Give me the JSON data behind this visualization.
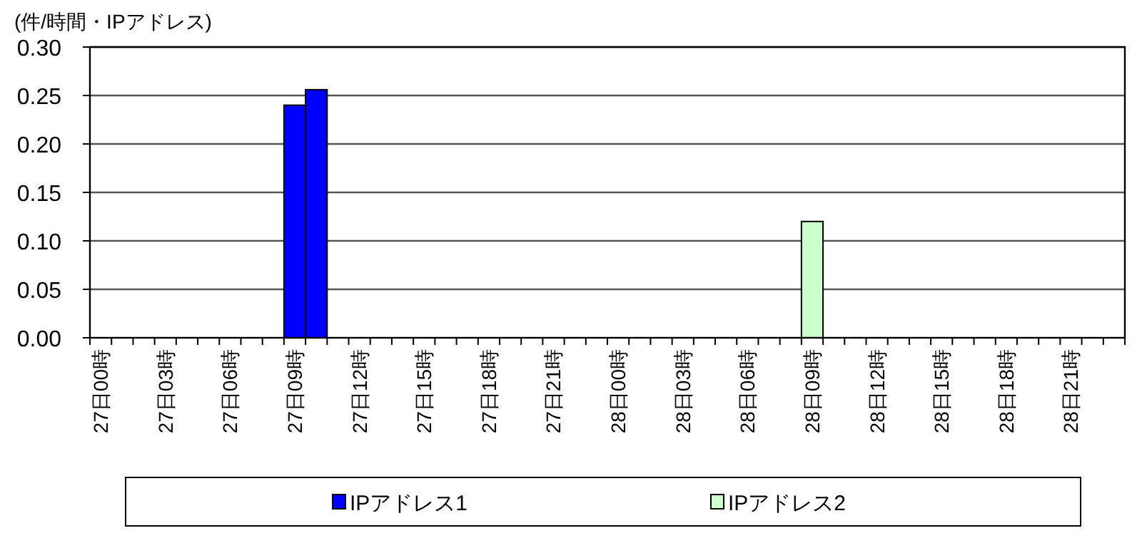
{
  "chart_data": {
    "type": "bar",
    "ylabel": "(件/時間・IPアドレス)",
    "categories": [
      "27日00時",
      null,
      null,
      "27日03時",
      null,
      null,
      "27日06時",
      null,
      null,
      "27日09時",
      null,
      null,
      "27日12時",
      null,
      null,
      "27日15時",
      null,
      null,
      "27日18時",
      null,
      null,
      "27日21時",
      null,
      null,
      "28日00時",
      null,
      null,
      "28日03時",
      null,
      null,
      "28日06時",
      null,
      null,
      "28日09時",
      null,
      null,
      "28日12時",
      null,
      null,
      "28日15時",
      null,
      null,
      "28日18時",
      null,
      null,
      "28日21時",
      null,
      null
    ],
    "series": [
      {
        "name": "IPアドレス1",
        "color": "#0000ff",
        "values": [
          0,
          0,
          0,
          0,
          0,
          0,
          0,
          0,
          0,
          0.24,
          0.256,
          0,
          0,
          0,
          0,
          0,
          0,
          0,
          0,
          0,
          0,
          0,
          0,
          0,
          0,
          0,
          0,
          0,
          0,
          0,
          0,
          0,
          0,
          0,
          0,
          0,
          0,
          0,
          0,
          0,
          0,
          0,
          0,
          0,
          0,
          0,
          0,
          0
        ]
      },
      {
        "name": "IPアドレス2",
        "color": "#ccffcc",
        "values": [
          0,
          0,
          0,
          0,
          0,
          0,
          0,
          0,
          0,
          0,
          0,
          0,
          0,
          0,
          0,
          0,
          0,
          0,
          0,
          0,
          0,
          0,
          0,
          0,
          0,
          0,
          0,
          0,
          0,
          0,
          0,
          0,
          0,
          0.12,
          0,
          0,
          0,
          0,
          0,
          0,
          0,
          0,
          0,
          0,
          0,
          0,
          0,
          0
        ]
      }
    ],
    "ylim": [
      0,
      0.3
    ],
    "yticks": [
      {
        "value": 0,
        "label": "0.00"
      },
      {
        "value": 0.05,
        "label": "0.05"
      },
      {
        "value": 0.1,
        "label": "0.10"
      },
      {
        "value": 0.15,
        "label": "0.15"
      },
      {
        "value": 0.2,
        "label": "0.20"
      },
      {
        "value": 0.25,
        "label": "0.25"
      },
      {
        "value": 0.3,
        "label": "0.30"
      }
    ],
    "grid": "y",
    "legend": "bottom"
  }
}
